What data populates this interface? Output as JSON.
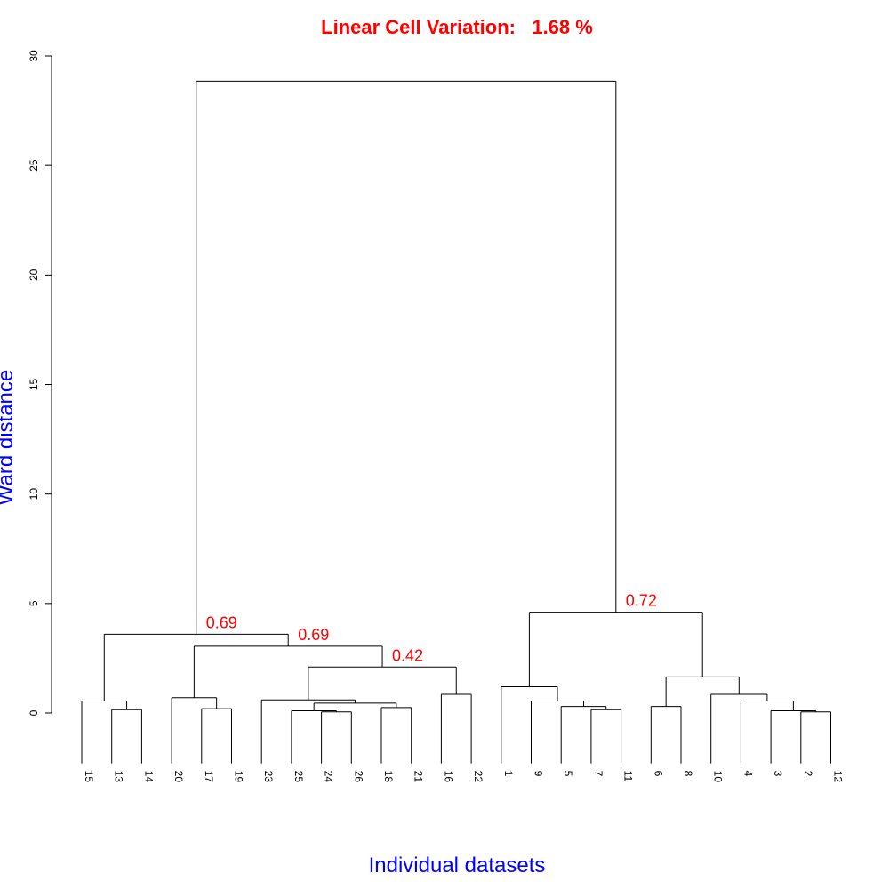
{
  "chart_data": {
    "type": "dendrogram",
    "title": "Linear Cell Variation:   1.68 %",
    "xlabel": "Individual datasets",
    "ylabel": "Ward distance",
    "ylim": [
      0,
      30
    ],
    "yticks": [
      0,
      5,
      10,
      15,
      20,
      25,
      30
    ],
    "leaf_order": [
      "15",
      "13",
      "14",
      "20",
      "17",
      "19",
      "23",
      "25",
      "24",
      "26",
      "18",
      "21",
      "16",
      "22",
      "1",
      "9",
      "5",
      "7",
      "11",
      "6",
      "8",
      "10",
      "4",
      "3",
      "2",
      "12"
    ],
    "merges": [
      {
        "id": "A",
        "children": [
          "13",
          "14"
        ],
        "height": 0.15
      },
      {
        "id": "B",
        "children": [
          "15",
          "A"
        ],
        "height": 0.55
      },
      {
        "id": "C",
        "children": [
          "17",
          "19"
        ],
        "height": 0.2
      },
      {
        "id": "D",
        "children": [
          "20",
          "C"
        ],
        "height": 0.7
      },
      {
        "id": "E",
        "children": [
          "24",
          "26"
        ],
        "height": 0.05
      },
      {
        "id": "F",
        "children": [
          "25",
          "E"
        ],
        "height": 0.1
      },
      {
        "id": "G",
        "children": [
          "18",
          "21"
        ],
        "height": 0.25
      },
      {
        "id": "H",
        "children": [
          "F",
          "G"
        ],
        "height": 0.45
      },
      {
        "id": "I",
        "children": [
          "23",
          "H"
        ],
        "height": 0.6
      },
      {
        "id": "J",
        "children": [
          "16",
          "22"
        ],
        "height": 0.85
      },
      {
        "id": "K",
        "children": [
          "I",
          "J"
        ],
        "height": 2.1,
        "label": "0.42"
      },
      {
        "id": "L",
        "children": [
          "D",
          "K"
        ],
        "height": 3.05,
        "label": "0.69"
      },
      {
        "id": "M",
        "children": [
          "B",
          "L"
        ],
        "height": 3.6,
        "label": "0.69"
      },
      {
        "id": "N",
        "children": [
          "7",
          "11"
        ],
        "height": 0.15
      },
      {
        "id": "O",
        "children": [
          "5",
          "N"
        ],
        "height": 0.3
      },
      {
        "id": "P",
        "children": [
          "9",
          "O"
        ],
        "height": 0.55
      },
      {
        "id": "Q",
        "children": [
          "1",
          "P"
        ],
        "height": 1.2
      },
      {
        "id": "R",
        "children": [
          "6",
          "8"
        ],
        "height": 0.3
      },
      {
        "id": "S",
        "children": [
          "2",
          "12"
        ],
        "height": 0.05
      },
      {
        "id": "T",
        "children": [
          "3",
          "S"
        ],
        "height": 0.1
      },
      {
        "id": "U",
        "children": [
          "4",
          "T"
        ],
        "height": 0.55
      },
      {
        "id": "V",
        "children": [
          "10",
          "U"
        ],
        "height": 0.85
      },
      {
        "id": "W",
        "children": [
          "R",
          "V"
        ],
        "height": 1.65
      },
      {
        "id": "X",
        "children": [
          "Q",
          "W"
        ],
        "height": 4.6,
        "label": "0.72"
      },
      {
        "id": "Y",
        "children": [
          "M",
          "X"
        ],
        "height": 28.85
      }
    ],
    "leaf_drop": 2.3,
    "colors": {
      "title": "#ff0000",
      "axis_title": "#0000ff",
      "node_label": "#ff0000",
      "lines": "#000000"
    }
  }
}
